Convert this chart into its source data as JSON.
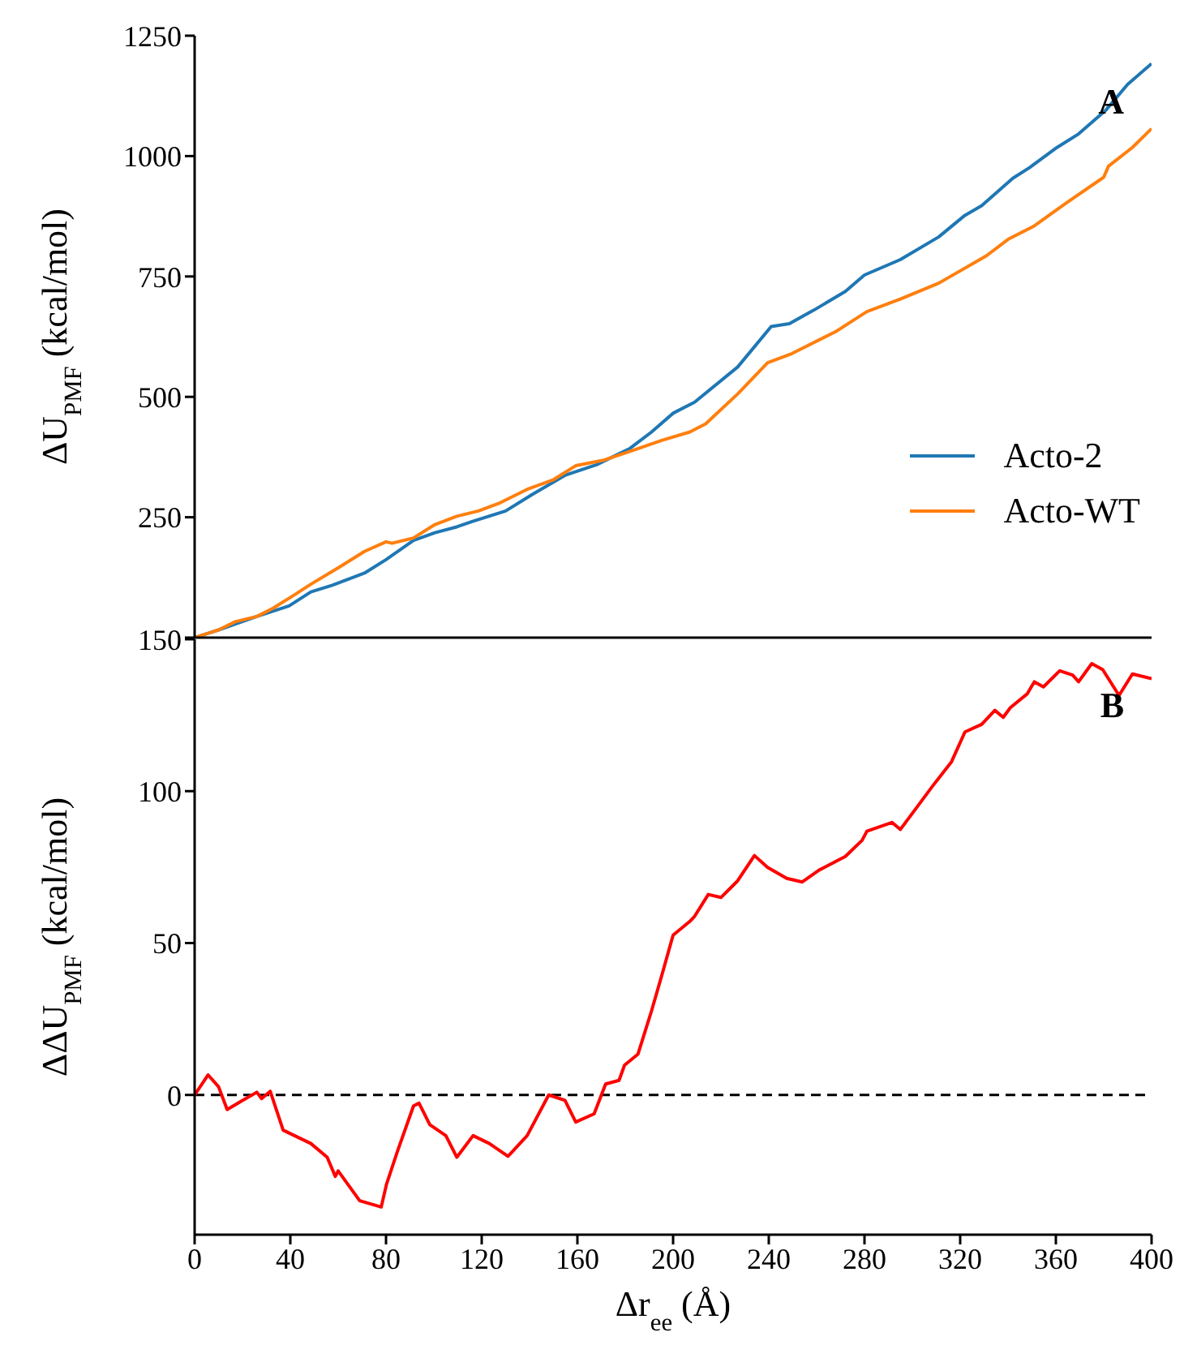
{
  "chart_data": [
    {
      "type": "line",
      "ylabel": "ΔU$_{PMF}$ (kcal/mol)",
      "annotations": [
        "A"
      ],
      "xlim": [
        0,
        400
      ],
      "xticks": [
        0,
        40,
        80,
        120,
        160,
        200,
        240,
        280,
        320,
        360,
        400
      ],
      "ylim": [
        0,
        1250
      ],
      "yticks": [
        {
          "value": 0,
          "label": null
        },
        250,
        500,
        750,
        1000,
        1250
      ],
      "tick_labels": "y",
      "legend": "bottom right",
      "series": [
        {
          "name": "Acto-2",
          "color": "#1f77b4",
          "x": [
            0,
            10,
            26,
            39.5,
            48.6,
            57.6,
            71,
            80,
            91.5,
            100.5,
            109.6,
            116,
            130,
            141,
            154.8,
            168,
            182,
            191,
            200,
            209,
            227,
            241,
            248.6,
            258.8,
            272,
            280,
            295,
            311,
            322,
            329,
            342,
            349,
            360.5,
            369.5,
            381,
            390,
            400
          ],
          "values": [
            0,
            16,
            44,
            66,
            95,
            109,
            134,
            162,
            202,
            218,
            230,
            241,
            263,
            297,
            337,
            359,
            393,
            427,
            466,
            489,
            562,
            646,
            652,
            680,
            719,
            753,
            785,
            832,
            877,
            897,
            954,
            976,
            1018,
            1046,
            1096,
            1149,
            1192
          ]
        },
        {
          "name": "Acto-WT",
          "color": "#ff7f0e",
          "x": [
            0,
            10,
            17,
            26,
            32.8,
            41.8,
            48.6,
            60,
            71,
            80,
            82.5,
            91.5,
            100.5,
            109.6,
            118.6,
            127.7,
            139,
            150,
            159.3,
            170.6,
            182,
            195.5,
            207,
            213.6,
            227,
            239.5,
            249.7,
            267.8,
            281,
            295,
            311,
            331,
            340,
            351,
            365,
            380,
            382,
            392,
            400
          ],
          "values": [
            0,
            16,
            33,
            44,
            61,
            89,
            111,
            145,
            179,
            199,
            196,
            207,
            235,
            252,
            263,
            280,
            308,
            328,
            357,
            368,
            387,
            410,
            427,
            444,
            506,
            571,
            590,
            635,
            677,
            703,
            736,
            793,
            827,
            855,
            905,
            956,
            979,
            1018,
            1057
          ]
        }
      ]
    },
    {
      "type": "line",
      "ylabel": "ΔΔU$_{PMF}$ (kcal/mol)",
      "xlabel": "Δr$_{ee}$ (Å)",
      "annotations": [
        "B"
      ],
      "xlim": [
        0,
        400
      ],
      "xticks": [
        0,
        40,
        80,
        120,
        160,
        200,
        240,
        280,
        320,
        360,
        400
      ],
      "ylim": [
        -46,
        150
      ],
      "yticks": [
        0,
        50,
        100,
        150
      ],
      "ref_lines": [
        {
          "axis": "y",
          "value": 0,
          "color": "#000000",
          "line_style": "dashed"
        }
      ],
      "series": [
        {
          "color": "#ff0000",
          "x": [
            0,
            5.6,
            10,
            13.6,
            19,
            26,
            28,
            31.6,
            37,
            48.6,
            55.4,
            58.8,
            60,
            69,
            78,
            80.2,
            84.7,
            91.5,
            93.8,
            98.3,
            105,
            109.6,
            116.4,
            123.2,
            131,
            139,
            148,
            154.8,
            159.3,
            167,
            171.8,
            177.4,
            179.7,
            185.3,
            191,
            195.5,
            200,
            206.8,
            209,
            214.7,
            220,
            227,
            234,
            239.5,
            247.5,
            254,
            261,
            272,
            279,
            281,
            291.5,
            295,
            301.7,
            308.5,
            316.4,
            322,
            329,
            334.5,
            338,
            341,
            348,
            351,
            354.8,
            361.6,
            367,
            369.5,
            375,
            379.6,
            386.4,
            392,
            400
          ],
          "values": [
            0,
            6.6,
            2.7,
            -4.8,
            -2.3,
            0.9,
            -1.2,
            1.2,
            -11.6,
            -16,
            -20.5,
            -26.8,
            -25,
            -34.8,
            -36.9,
            -29.4,
            -18.7,
            -3.6,
            -2.7,
            -9.8,
            -13.4,
            -20.5,
            -13.4,
            -16,
            -20.2,
            -13.4,
            0,
            -1.8,
            -8.9,
            -6.2,
            3.6,
            4.8,
            9.8,
            13.4,
            27.7,
            40,
            52.6,
            57,
            58.8,
            66,
            65,
            70.5,
            78.8,
            74.9,
            71.3,
            70.1,
            74,
            78.5,
            83.8,
            86.8,
            89.7,
            87.4,
            94.5,
            101.7,
            109.7,
            119.5,
            122,
            126.6,
            124.3,
            127.5,
            132,
            136,
            134.3,
            139.6,
            138.2,
            136,
            142,
            140,
            131.5,
            138.6,
            137
          ]
        }
      ]
    }
  ]
}
